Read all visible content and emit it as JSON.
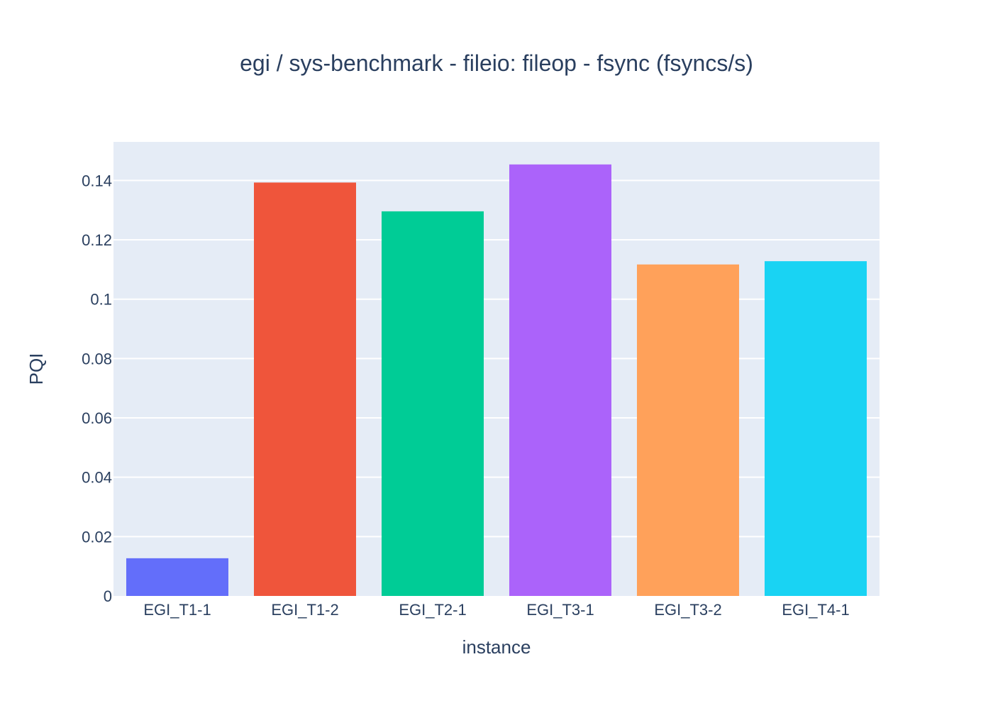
{
  "chart_data": {
    "type": "bar",
    "title": "egi / sys-benchmark - fileio: fileop - fsync (fsyncs/s)",
    "xlabel": "instance",
    "ylabel": "PQI",
    "categories": [
      "EGI_T1-1",
      "EGI_T1-2",
      "EGI_T2-1",
      "EGI_T3-1",
      "EGI_T3-2",
      "EGI_T4-1"
    ],
    "values": [
      0.0127,
      0.1393,
      0.1296,
      0.1454,
      0.1117,
      0.1128
    ],
    "colors": [
      "#636efa",
      "#ef553b",
      "#00cc96",
      "#ab63fa",
      "#ffa15a",
      "#19d3f3"
    ],
    "ylim": [
      0,
      0.153
    ],
    "yticks": [
      0,
      0.02,
      0.04,
      0.06,
      0.08,
      0.1,
      0.12,
      0.14
    ],
    "ytick_labels": [
      "0",
      "0.02",
      "0.04",
      "0.06",
      "0.08",
      "0.1",
      "0.12",
      "0.14"
    ],
    "grid": true,
    "plot_background": "#e5ecf6",
    "legend": "none"
  }
}
